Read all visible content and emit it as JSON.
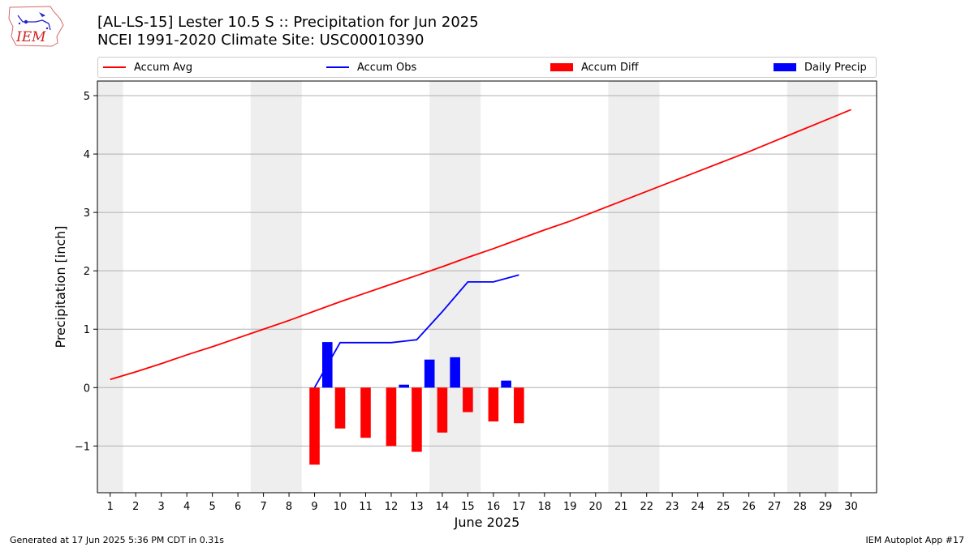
{
  "header": {
    "title_line1": "[AL-LS-15] Lester 10.5 S :: Precipitation for Jun 2025",
    "title_line2": "NCEI 1991-2020 Climate Site: USC00010390"
  },
  "logo": {
    "text": "IEM",
    "icon": "iem-logo-icon"
  },
  "footer": {
    "left": "Generated at 17 Jun 2025 5:36 PM CDT in 0.31s",
    "right": "IEM Autoplot App #17"
  },
  "colors": {
    "avg": "#ff0000",
    "obs": "#0000ff",
    "diff": "#ff0000",
    "daily": "#0000ff",
    "weekend": "#eeeeee",
    "grid": "#b0b0b0"
  },
  "chart_data": {
    "type": "bar",
    "title": "[AL-LS-15] Lester 10.5 S :: Precipitation for Jun 2025",
    "subtitle": "NCEI 1991-2020 Climate Site: USC00010390",
    "xlabel": "June 2025",
    "ylabel": "Precipitation [inch]",
    "xlim": [
      0.5,
      31.0
    ],
    "ylim": [
      -1.8,
      5.25
    ],
    "x_ticks": [
      1,
      2,
      3,
      4,
      5,
      6,
      7,
      8,
      9,
      10,
      11,
      12,
      13,
      14,
      15,
      16,
      17,
      18,
      19,
      20,
      21,
      22,
      23,
      24,
      25,
      26,
      27,
      28,
      29,
      30
    ],
    "y_ticks": [
      -1,
      0,
      1,
      2,
      3,
      4,
      5
    ],
    "y_tick_labels": [
      "−1",
      "0",
      "1",
      "2",
      "3",
      "4",
      "5"
    ],
    "grid": "horizontal",
    "legend_placement": "top, above plot",
    "shaded_weekend_ranges": [
      [
        0.5,
        1.5
      ],
      [
        6.5,
        8.5
      ],
      [
        13.5,
        15.5
      ],
      [
        20.5,
        22.5
      ],
      [
        27.5,
        29.5
      ]
    ],
    "series": [
      {
        "name": "Accum Avg",
        "kind": "line",
        "color": "#ff0000",
        "x": [
          1,
          2,
          3,
          4,
          5,
          6,
          7,
          8,
          9,
          10,
          11,
          12,
          13,
          14,
          15,
          16,
          17,
          18,
          19,
          20,
          21,
          22,
          23,
          24,
          25,
          26,
          27,
          28,
          29,
          30
        ],
        "values": [
          0.14,
          0.27,
          0.41,
          0.56,
          0.7,
          0.85,
          1.0,
          1.15,
          1.31,
          1.47,
          1.62,
          1.77,
          1.92,
          2.07,
          2.23,
          2.38,
          2.54,
          2.7,
          2.85,
          3.02,
          3.19,
          3.36,
          3.53,
          3.7,
          3.87,
          4.04,
          4.22,
          4.4,
          4.58,
          4.76
        ]
      },
      {
        "name": "Accum Obs",
        "kind": "line",
        "color": "#0000ff",
        "x": [
          9,
          10,
          11,
          12,
          13,
          14,
          15,
          16,
          17
        ],
        "values": [
          0.0,
          0.77,
          0.77,
          0.77,
          0.82,
          1.3,
          1.81,
          1.81,
          1.93
        ]
      },
      {
        "name": "Accum Diff",
        "kind": "bar",
        "color": "#ff0000",
        "x": [
          9,
          10,
          11,
          12,
          13,
          14,
          15,
          16,
          17
        ],
        "values": [
          -1.32,
          -0.7,
          -0.86,
          -1.0,
          -1.1,
          -0.77,
          -0.42,
          -0.58,
          -0.61
        ]
      },
      {
        "name": "Daily Precip",
        "kind": "bar",
        "color": "#0000ff",
        "x": [
          10,
          11,
          12,
          13,
          14,
          15,
          16,
          17,
          18
        ],
        "values": [
          0.78,
          0.0,
          0.0,
          0.05,
          0.48,
          0.52,
          0.0,
          0.12,
          0.0
        ]
      }
    ]
  }
}
